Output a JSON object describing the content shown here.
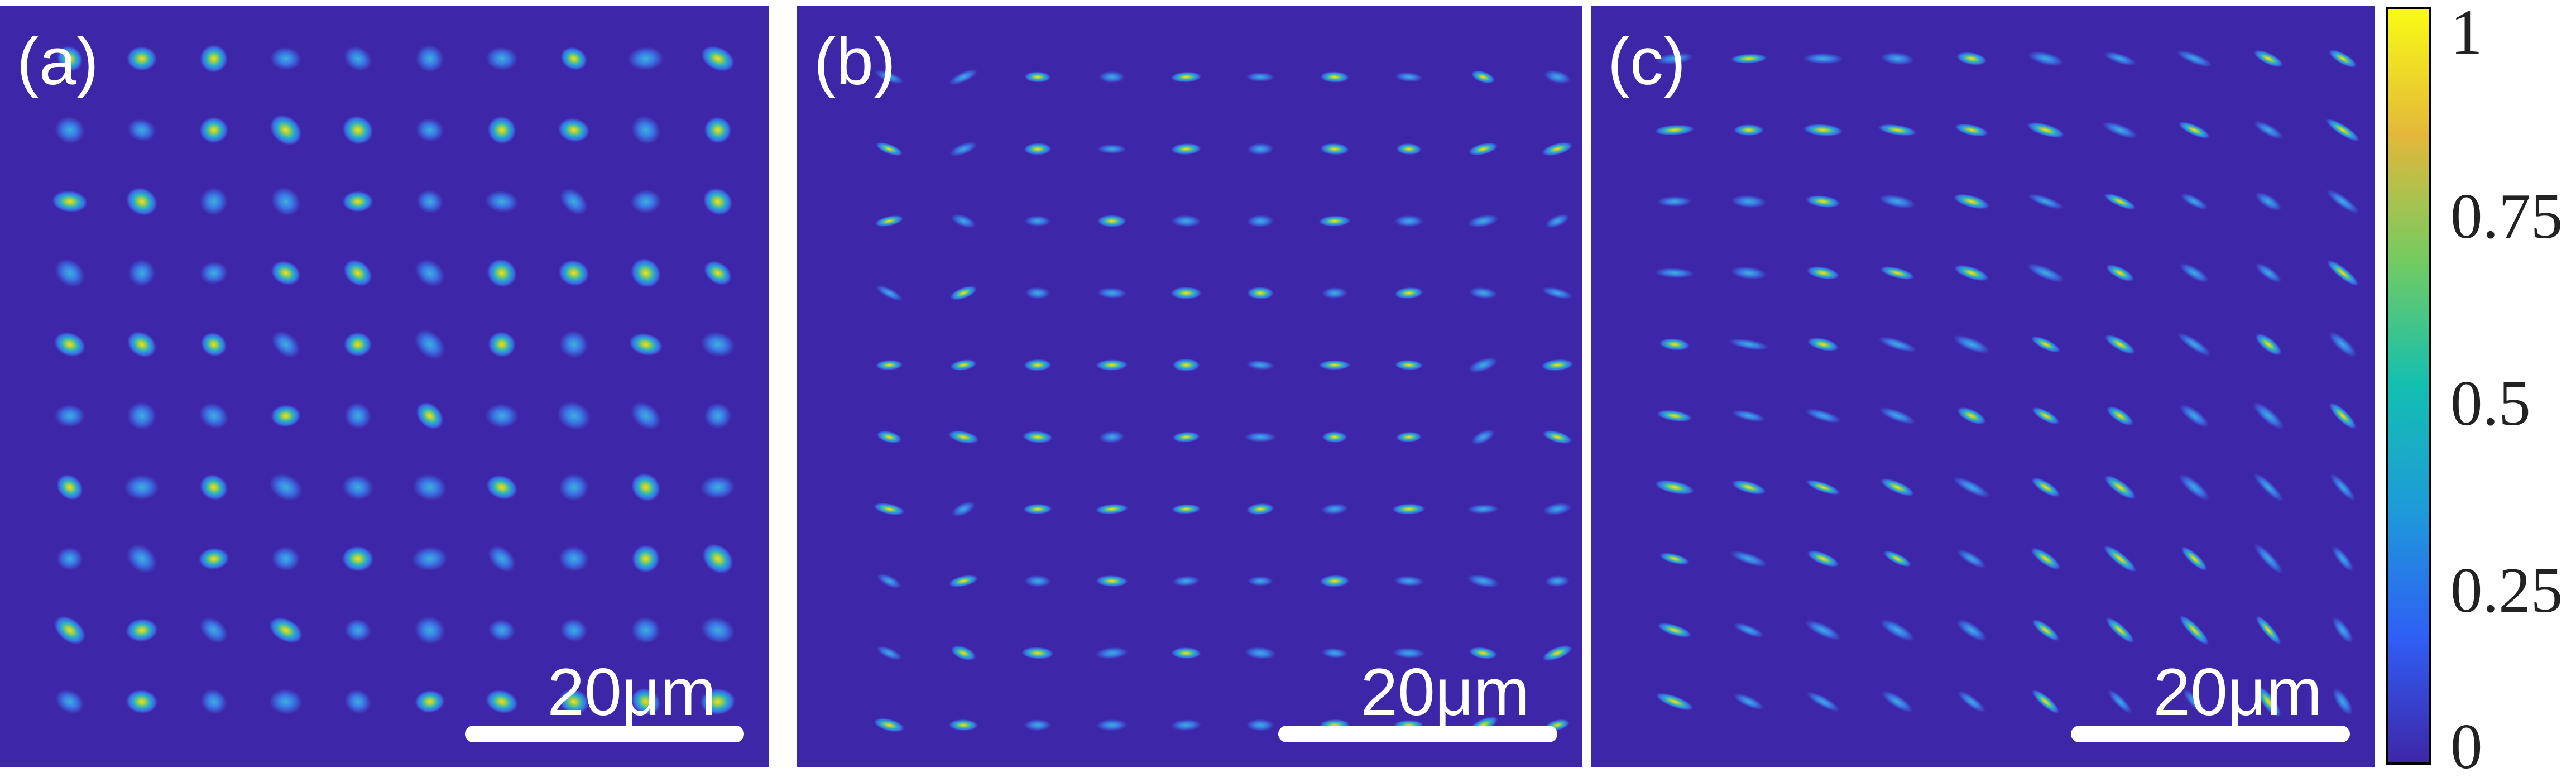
{
  "panels": [
    {
      "id": "a",
      "label": "(a)",
      "scale_bar_label": "20μm"
    },
    {
      "id": "b",
      "label": "(b)",
      "scale_bar_label": "20μm"
    },
    {
      "id": "c",
      "label": "(c)",
      "scale_bar_label": "20μm"
    }
  ],
  "colorbar": {
    "colormap": "parula",
    "colors": [
      "#3e26a8",
      "#2f5ff5",
      "#1e9ad9",
      "#13bfb1",
      "#74cb61",
      "#e3b83a",
      "#f9fb15"
    ],
    "ticks": [
      "1",
      "0.75",
      "0.5",
      "0.25",
      "0"
    ]
  },
  "spot_grid": {
    "rows": 10,
    "cols": 10
  }
}
